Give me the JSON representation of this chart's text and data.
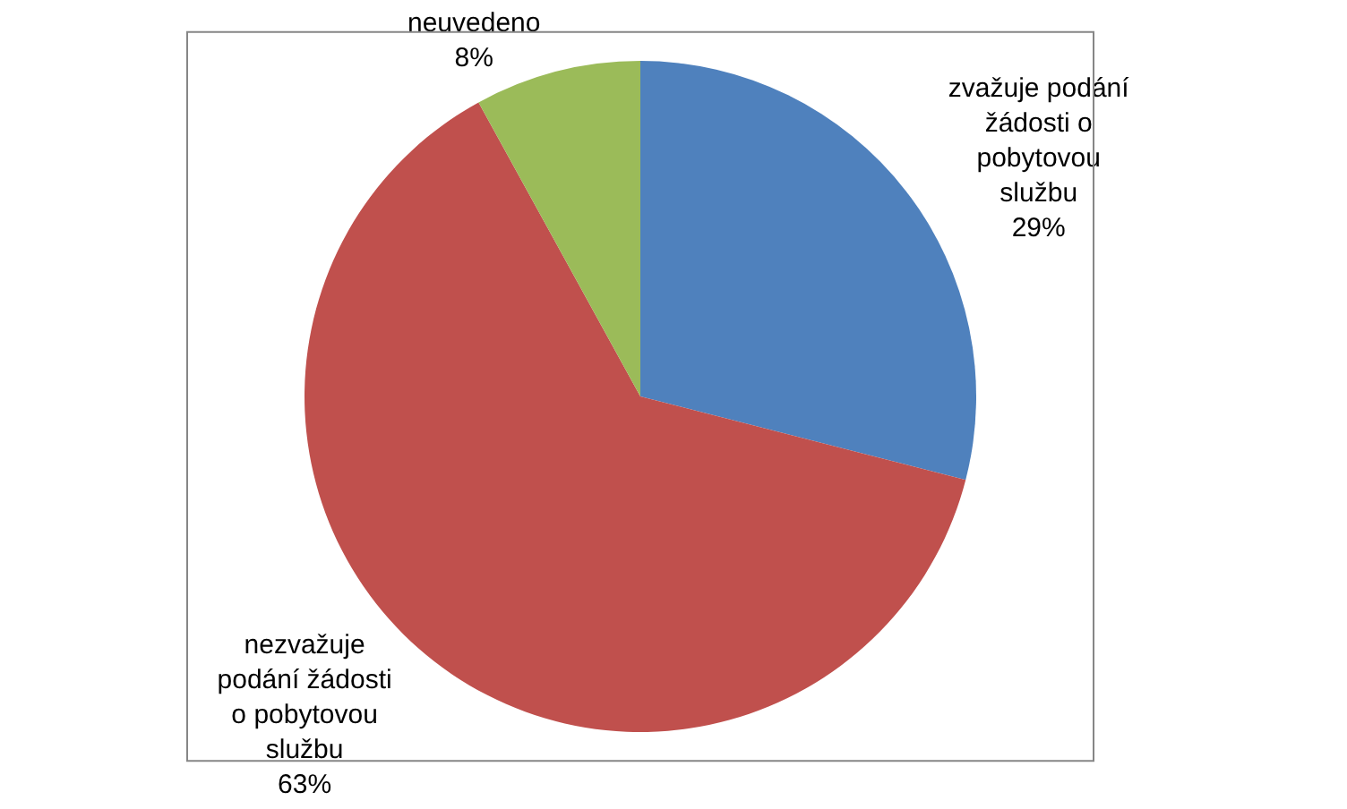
{
  "chart_data": {
    "type": "pie",
    "categories": [
      "zvažuje podání žádosti o pobytovou službu",
      "nezvažuje podání žádosti o pobytovou službu",
      "neuvedeno"
    ],
    "values": [
      29,
      63,
      8
    ],
    "value_labels": [
      "29%",
      "63%",
      "8%"
    ],
    "colors": [
      "#4f81bd",
      "#c0504d",
      "#9bbb59"
    ],
    "legend": false
  }
}
